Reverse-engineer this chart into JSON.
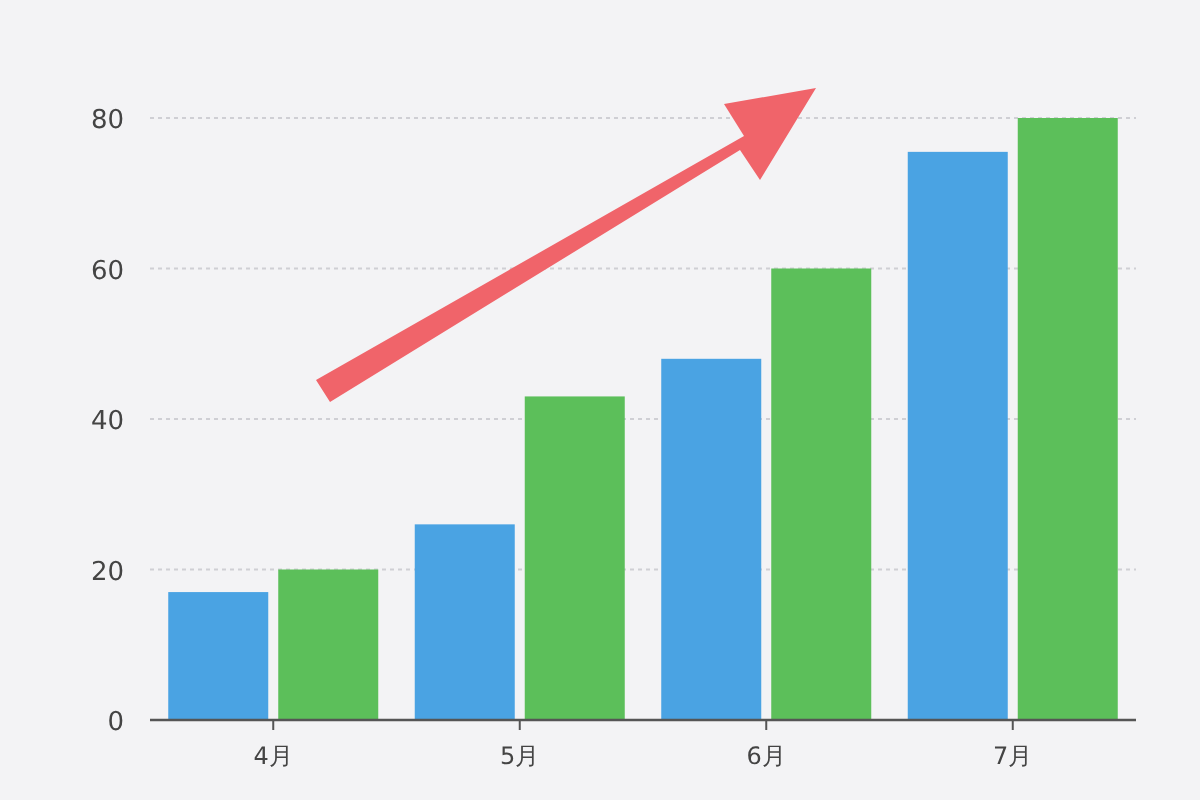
{
  "chart_data": {
    "type": "bar",
    "categories": [
      "4月",
      "5月",
      "6月",
      "7月"
    ],
    "series": [
      {
        "color": "#4aa3e3",
        "values": [
          17,
          26,
          48,
          75.5
        ]
      },
      {
        "color": "#5cbf5a",
        "values": [
          20,
          43,
          60,
          80
        ]
      }
    ],
    "ylim": [
      0,
      80
    ],
    "yticks": [
      0,
      20,
      40,
      60,
      80
    ],
    "grid": "y"
  }
}
